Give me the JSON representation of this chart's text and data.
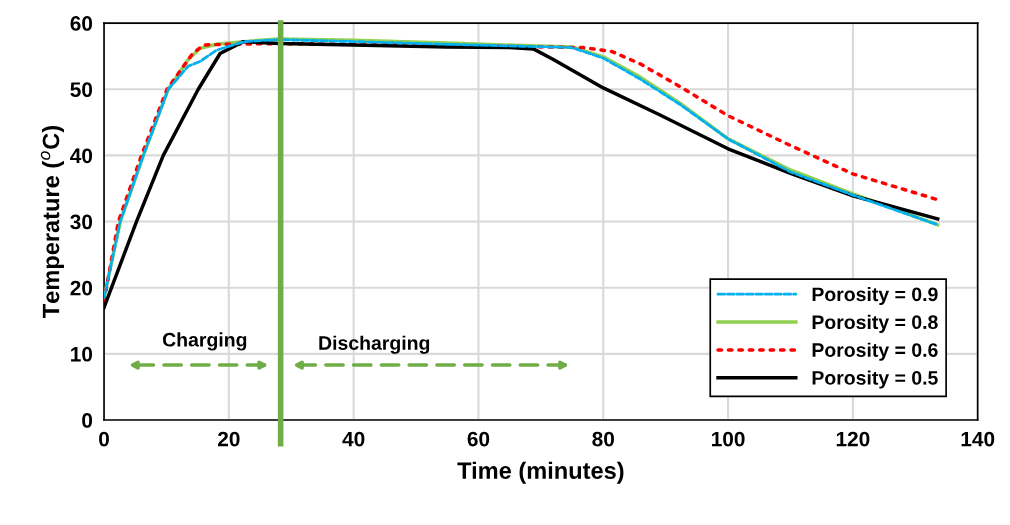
{
  "chart_data": {
    "type": "line",
    "xlabel": "Time (minutes)",
    "ylabel": "Temperature ($^{o}$C)",
    "xlim": [
      0,
      140
    ],
    "ylim": [
      0,
      60
    ],
    "xticks": [
      0,
      20,
      40,
      60,
      80,
      100,
      120,
      140
    ],
    "yticks": [
      0,
      10,
      20,
      30,
      40,
      50,
      60
    ],
    "grid": true,
    "legend": "bottom right",
    "marker": "none",
    "ref_lines": [
      {
        "axis": "x",
        "value": 28.3,
        "color": "#70ad47",
        "line_style": "solid"
      }
    ],
    "annotations": [
      "Charging",
      "Discharging"
    ],
    "series": [
      {
        "name": "Porosity = 0.9",
        "color": "#00b0f0",
        "line_style": "dashed",
        "x": [
          0,
          2.6,
          6.3,
          10.3,
          13.5,
          15.4,
          18,
          22.4,
          28,
          40,
          55,
          67,
          75,
          80,
          86,
          92.3,
          100,
          110,
          120,
          133.6
        ],
        "values": [
          18.5,
          30,
          40,
          50,
          53.5,
          54.2,
          55.9,
          57.2,
          57.5,
          57.2,
          56.8,
          56.5,
          56.3,
          54.7,
          51.5,
          47.7,
          42.5,
          37.5,
          34,
          29.5
        ]
      },
      {
        "name": "Porosity = 0.8",
        "color": "#92d050",
        "line_style": "solid",
        "x": [
          0,
          2.6,
          6.3,
          10.3,
          13.5,
          15.4,
          18,
          22.4,
          28,
          40,
          55,
          67,
          75,
          80,
          86,
          92.3,
          100,
          110,
          120,
          133.6
        ],
        "values": [
          18.5,
          30,
          40,
          50,
          54.5,
          56.2,
          56.8,
          57.2,
          57.6,
          57.4,
          57,
          56.6,
          56.4,
          54.9,
          51.8,
          47.9,
          42.5,
          37.8,
          34.2,
          29.5
        ]
      },
      {
        "name": "Porosity = 0.6",
        "color": "#ff0000",
        "line_style": "dotted",
        "x": [
          0,
          2.3,
          6,
          10.1,
          14.2,
          16,
          20,
          28,
          40,
          55,
          70,
          76.8,
          81.4,
          86,
          92.3,
          100,
          110,
          120,
          133.6
        ],
        "values": [
          18,
          30,
          40,
          50,
          55.4,
          56.7,
          56.8,
          56.9,
          56.8,
          56.6,
          56.4,
          56.3,
          55.7,
          53.8,
          50.4,
          46,
          41.5,
          37.2,
          33.3
        ]
      },
      {
        "name": "Porosity = 0.5",
        "color": "#000000",
        "line_style": "solid",
        "x": [
          0,
          5.2,
          9.5,
          15.1,
          18.6,
          22.3,
          28.2,
          40,
          55,
          65,
          68.8,
          72,
          80,
          89.1,
          100,
          110,
          120,
          133.6
        ],
        "values": [
          17,
          30,
          40,
          50,
          55.4,
          57.2,
          56.9,
          56.7,
          56.4,
          56.3,
          56.1,
          54.5,
          50.2,
          46.1,
          41,
          37.3,
          33.9,
          30.4
        ]
      }
    ]
  }
}
